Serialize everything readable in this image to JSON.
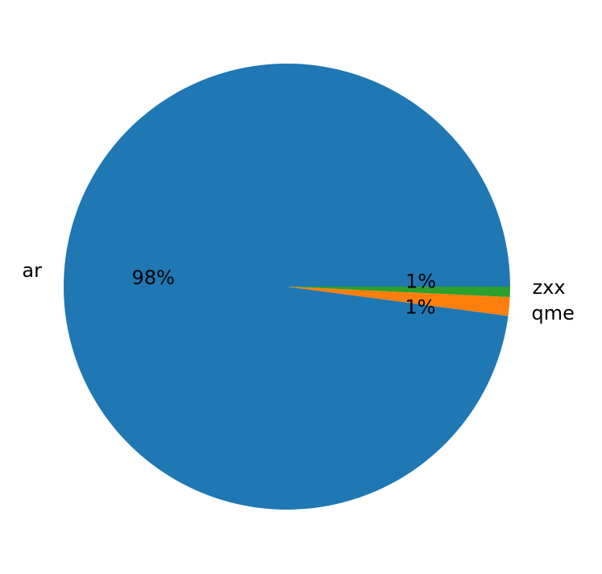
{
  "chart_data": {
    "type": "pie",
    "title": "",
    "start_angle_deg": 0,
    "direction": "counterclockwise",
    "slices": [
      {
        "label": "ar",
        "value": 97.9,
        "pct_label": "98%",
        "color": "#1f77b4"
      },
      {
        "label": "qme",
        "value": 1.35,
        "pct_label": "1%",
        "color": "#ff7f0e"
      },
      {
        "label": "zxx",
        "value": 0.75,
        "pct_label": "1%",
        "color": "#2ca02c"
      }
    ]
  }
}
